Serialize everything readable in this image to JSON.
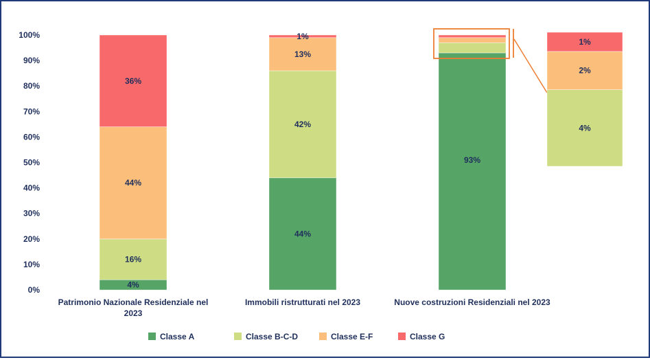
{
  "chart_data": {
    "type": "bar",
    "stacked": true,
    "title": "",
    "xlabel": "",
    "ylabel": "",
    "ylim": [
      0,
      100
    ],
    "yticks": [
      "0%",
      "10%",
      "20%",
      "30%",
      "40%",
      "50%",
      "60%",
      "70%",
      "80%",
      "90%",
      "100%"
    ],
    "categories": [
      [
        "Patrimonio Nazionale Residenziale nel",
        "2023"
      ],
      [
        "Immobili ristrutturati nel 2023"
      ],
      [
        "Nuove costruzioni Residenziali nel 2023"
      ]
    ],
    "series": [
      {
        "name": "Classe A",
        "color": "#57a467",
        "values": [
          4,
          44,
          93
        ]
      },
      {
        "name": "Classe B-C-D",
        "color": "#cedd84",
        "values": [
          16,
          42,
          4
        ]
      },
      {
        "name": "Classe E-F",
        "color": "#fcbf7b",
        "values": [
          44,
          13,
          2
        ]
      },
      {
        "name": "Classe G",
        "color": "#f8696b",
        "values": [
          36,
          1,
          1
        ]
      }
    ],
    "labels": [
      [
        "4%",
        "44%",
        "93%"
      ],
      [
        "16%",
        "42%",
        ""
      ],
      [
        "44%",
        "13%",
        ""
      ],
      [
        "36%",
        "1%",
        ""
      ]
    ],
    "zoom_inset": {
      "category_index": 2,
      "segments": [
        {
          "series": "Classe B-C-D",
          "value": 4,
          "label": "4%"
        },
        {
          "series": "Classe E-F",
          "value": 2,
          "label": "2%"
        },
        {
          "series": "Classe G",
          "value": 1,
          "label": "1%"
        }
      ],
      "highlight_color": "#ed7d31"
    },
    "legend": "bottom",
    "grid": false
  }
}
